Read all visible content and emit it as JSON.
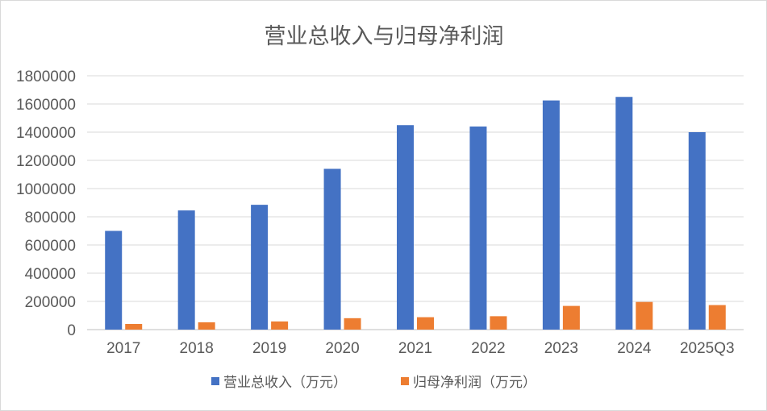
{
  "chart_data": {
    "type": "bar",
    "title": "营业总收入与归母净利润",
    "categories": [
      "2017",
      "2018",
      "2019",
      "2020",
      "2021",
      "2022",
      "2023",
      "2024",
      "2025Q3"
    ],
    "series": [
      {
        "name": "营业总收入（万元）",
        "color": "#4472c4",
        "values": [
          700000,
          845000,
          885000,
          1140000,
          1450000,
          1440000,
          1625000,
          1650000,
          1400000
        ]
      },
      {
        "name": "归母净利润（万元）",
        "color": "#ed7d31",
        "values": [
          40000,
          52000,
          58000,
          81000,
          88000,
          95000,
          168000,
          196000,
          174000
        ]
      }
    ],
    "ylim": [
      0,
      1800000
    ],
    "yticks": [
      "0",
      "200000",
      "400000",
      "600000",
      "800000",
      "1000000",
      "1200000",
      "1400000",
      "1600000",
      "1800000"
    ],
    "grid": true,
    "legend": "bottom",
    "xlabel": "",
    "ylabel": ""
  }
}
